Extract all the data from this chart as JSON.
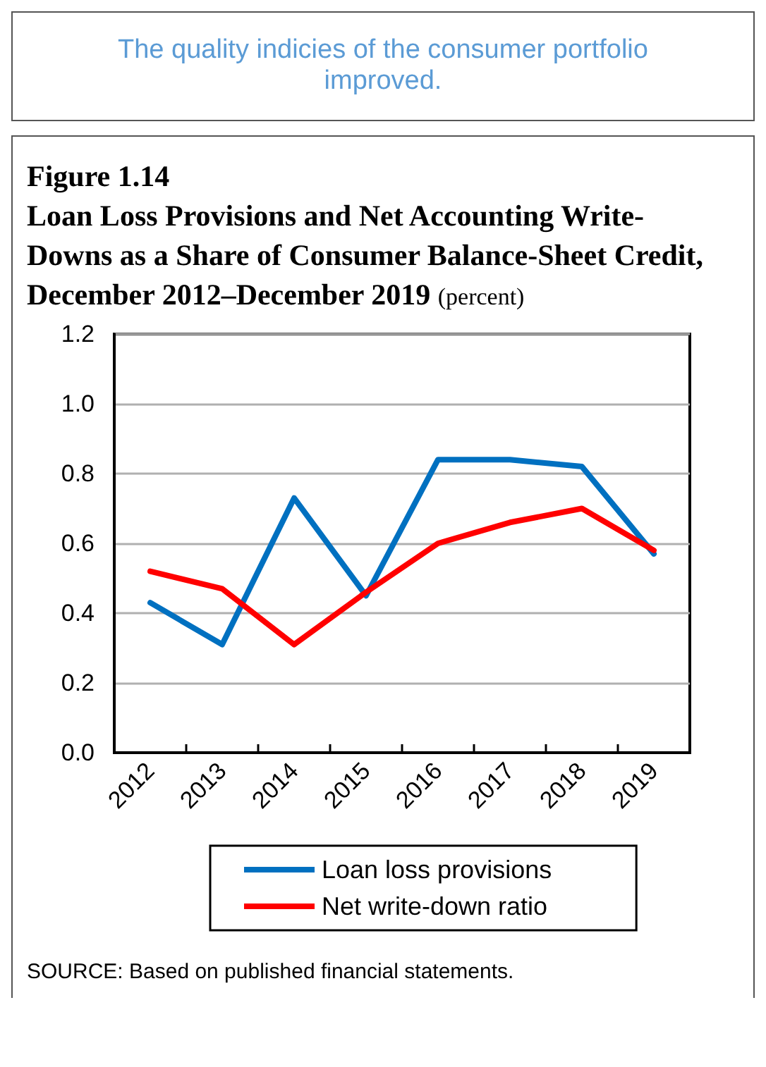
{
  "chart_data": {
    "type": "line",
    "title": "Figure 1.14",
    "subtitle": "Loan Loss Provisions and Net Accounting Write-Downs as a Share of Consumer Balance-Sheet Credit, December 2012–December 2019",
    "ylabel": "(percent)",
    "annotations": [
      "The quality indicies of the consumer portfolio improved.",
      "SOURCE:  Based on published financial statements."
    ],
    "categories": [
      "2012",
      "2013",
      "2014",
      "2015",
      "2016",
      "2017",
      "2018",
      "2019"
    ],
    "series": [
      {
        "name": "Loan loss provisions",
        "color": "#0070c0",
        "values": [
          0.43,
          0.31,
          0.73,
          0.45,
          0.84,
          0.84,
          0.82,
          0.57
        ]
      },
      {
        "name": "Net write-down ratio",
        "color": "#ff0000",
        "values": [
          0.52,
          0.47,
          0.31,
          0.46,
          0.6,
          0.66,
          0.7,
          0.58
        ]
      }
    ],
    "ylim": [
      0,
      1.2
    ],
    "yticks": [
      {
        "value": 0,
        "label": "0.0"
      },
      {
        "value": 0.2,
        "label": "0.2"
      },
      {
        "value": 0.4,
        "label": "0.4"
      },
      {
        "value": 0.6,
        "label": "0.6"
      },
      {
        "value": 0.8,
        "label": "0.8"
      },
      {
        "value": 1,
        "label": "1.0"
      },
      {
        "value": 1.2,
        "label": "1.2"
      }
    ],
    "grid": "y",
    "legend": "bottom",
    "marker": "none",
    "line_style": "solid"
  }
}
